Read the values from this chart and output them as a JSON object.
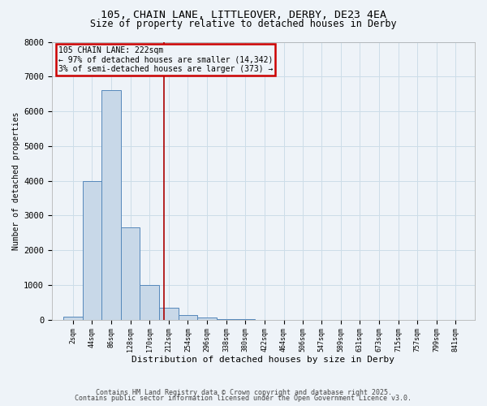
{
  "title_line1": "105, CHAIN LANE, LITTLEOVER, DERBY, DE23 4EA",
  "title_line2": "Size of property relative to detached houses in Derby",
  "xlabel": "Distribution of detached houses by size in Derby",
  "ylabel": "Number of detached properties",
  "bin_labels": [
    "2sqm",
    "44sqm",
    "86sqm",
    "128sqm",
    "170sqm",
    "212sqm",
    "254sqm",
    "296sqm",
    "338sqm",
    "380sqm",
    "422sqm",
    "464sqm",
    "506sqm",
    "547sqm",
    "589sqm",
    "631sqm",
    "673sqm",
    "715sqm",
    "757sqm",
    "799sqm",
    "841sqm"
  ],
  "bin_edges": [
    2,
    44,
    86,
    128,
    170,
    212,
    254,
    296,
    338,
    380,
    422,
    464,
    506,
    547,
    589,
    631,
    673,
    715,
    757,
    799,
    841
  ],
  "bar_heights": [
    75,
    4000,
    6600,
    2650,
    1000,
    340,
    130,
    55,
    25,
    5,
    0,
    0,
    0,
    0,
    0,
    0,
    0,
    0,
    0,
    0
  ],
  "bar_color": "#c8d8e8",
  "bar_edge_color": "#5588bb",
  "property_line_x": 222,
  "property_line_color": "#aa0000",
  "annotation_text": "105 CHAIN LANE: 222sqm\n← 97% of detached houses are smaller (14,342)\n3% of semi-detached houses are larger (373) →",
  "annotation_box_color": "#cc0000",
  "ylim": [
    0,
    8000
  ],
  "yticks": [
    0,
    1000,
    2000,
    3000,
    4000,
    5000,
    6000,
    7000,
    8000
  ],
  "grid_color": "#ccdde8",
  "background_color": "#eef3f8",
  "footnote_line1": "Contains HM Land Registry data © Crown copyright and database right 2025.",
  "footnote_line2": "Contains public sector information licensed under the Open Government Licence v3.0."
}
